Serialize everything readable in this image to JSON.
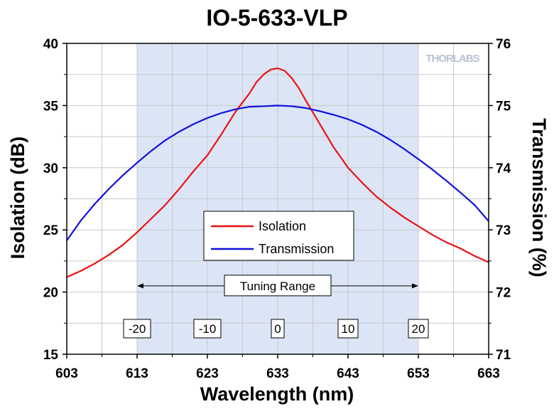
{
  "chart_data": {
    "type": "line",
    "title": "IO-5-633-VLP",
    "xlabel": "Wavelength (nm)",
    "ylabel": "Isolation (dB)",
    "y2label": "Transmission (%)",
    "watermark": "THORLABS",
    "xlim": [
      603,
      663
    ],
    "ylim": [
      15,
      40
    ],
    "y2lim": [
      71,
      76
    ],
    "x_ticks": [
      603,
      613,
      623,
      633,
      643,
      653,
      663
    ],
    "y_ticks": [
      15,
      20,
      25,
      30,
      35,
      40
    ],
    "y2_ticks": [
      71,
      72,
      73,
      74,
      75,
      76
    ],
    "grid": true,
    "legend_position": "center",
    "tuning_range": {
      "label": "Tuning Range",
      "x_start": 613,
      "x_end": 653,
      "y_arrow": 20.5,
      "offset_labels": [
        {
          "text": "-20",
          "x": 613
        },
        {
          "text": "-10",
          "x": 623
        },
        {
          "text": "0",
          "x": 633
        },
        {
          "text": "10",
          "x": 643
        },
        {
          "text": "20",
          "x": 653
        }
      ]
    },
    "series": [
      {
        "name": "Isolation",
        "axis": "left",
        "color": "#ee1111",
        "x": [
          603,
          605,
          607,
          609,
          611,
          613,
          615,
          617,
          619,
          621,
          623,
          625,
          627,
          629,
          630,
          631,
          632,
          633,
          634,
          635,
          636,
          637,
          639,
          641,
          643,
          645,
          647,
          649,
          651,
          653,
          655,
          657,
          659,
          661,
          663
        ],
        "y": [
          21.2,
          21.7,
          22.3,
          23.0,
          23.8,
          24.8,
          25.9,
          27.0,
          28.3,
          29.7,
          31.0,
          32.7,
          34.5,
          36.0,
          36.9,
          37.5,
          37.9,
          38.0,
          37.8,
          37.2,
          36.4,
          35.4,
          33.5,
          31.6,
          30.0,
          28.8,
          27.7,
          26.8,
          26.0,
          25.3,
          24.6,
          24.0,
          23.5,
          22.9,
          22.4
        ]
      },
      {
        "name": "Transmission",
        "axis": "right",
        "color": "#1010dd",
        "x": [
          603,
          605,
          607,
          609,
          611,
          613,
          615,
          617,
          619,
          621,
          623,
          625,
          627,
          629,
          631,
          633,
          635,
          637,
          639,
          641,
          643,
          645,
          647,
          649,
          651,
          653,
          655,
          657,
          659,
          661,
          663
        ],
        "y": [
          72.83,
          73.15,
          73.42,
          73.66,
          73.88,
          74.08,
          74.27,
          74.44,
          74.58,
          74.7,
          74.8,
          74.88,
          74.94,
          74.98,
          74.99,
          75.0,
          74.99,
          74.96,
          74.91,
          74.85,
          74.78,
          74.69,
          74.58,
          74.45,
          74.3,
          74.14,
          73.97,
          73.79,
          73.6,
          73.4,
          73.14
        ]
      }
    ]
  }
}
